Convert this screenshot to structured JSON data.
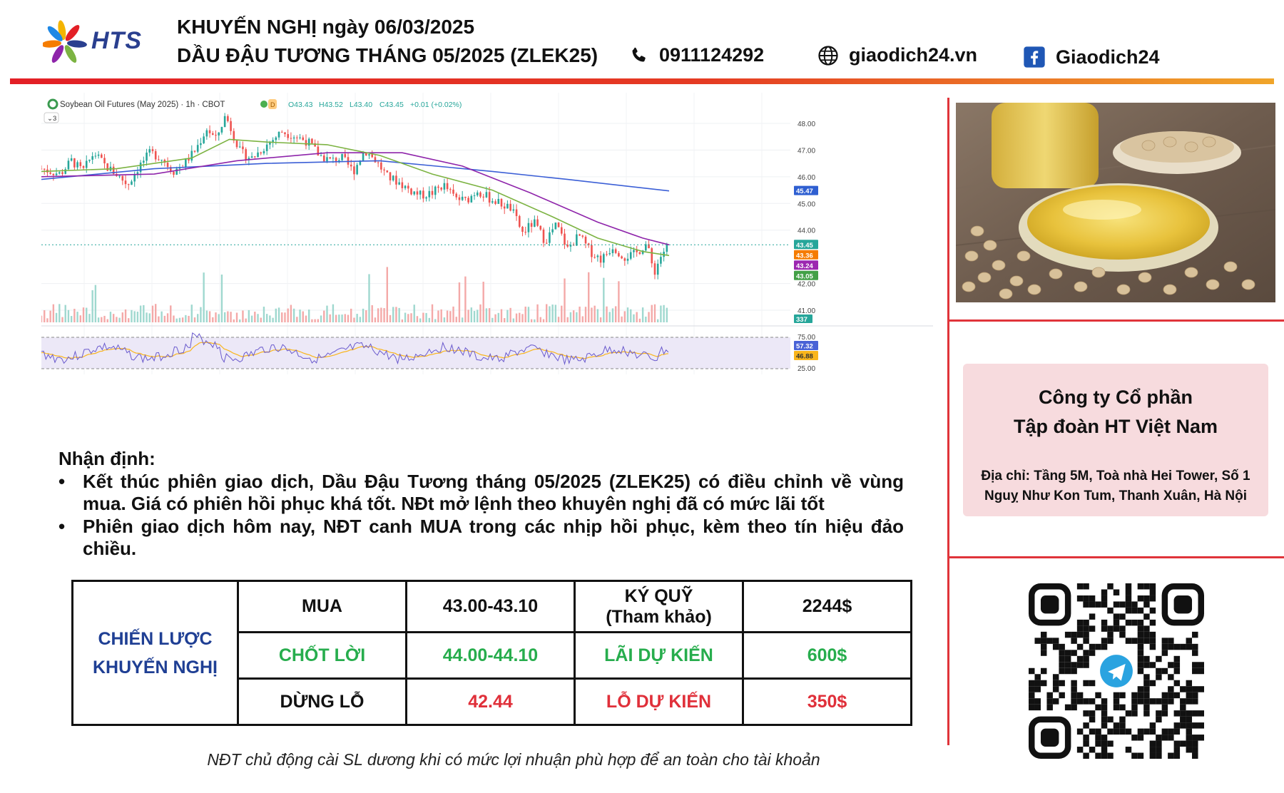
{
  "header": {
    "brand": "HTS",
    "title_line1": "KHUYẾN NGHỊ ngày 06/03/2025",
    "title_line2": "DẦU ĐẬU TƯƠNG THÁNG 05/2025 (ZLEK25)",
    "phone": "0911124292",
    "website": "giaodich24.vn",
    "facebook": "Giaodich24",
    "icons": [
      "phone-icon",
      "globe-icon",
      "facebook-icon"
    ]
  },
  "chart_data": {
    "type": "candlestick",
    "title": "Soybean Oil Futures (May 2025) · 1h · CBOT",
    "ohlc_readout": {
      "open": "O43.43",
      "high": "H43.52",
      "low": "L43.40",
      "close": "C43.45",
      "change": "+0.01 (+0.02%)"
    },
    "indicator_count": "3",
    "price_axis": {
      "ticks": [
        "48.00",
        "47.00",
        "46.00",
        "45.00",
        "44.00",
        "42.00",
        "41.00"
      ],
      "ylim": [
        40.6,
        48.4
      ]
    },
    "price_badges": [
      {
        "label": "45.47",
        "value": 45.47,
        "color": "#2f5fd1"
      },
      {
        "label": "43.45",
        "value": 43.45,
        "color": "#26a69a"
      },
      {
        "label": "43.36",
        "value": 43.36,
        "color": "#f57c00"
      },
      {
        "label": "43.24",
        "value": 43.24,
        "color": "#9c27b0"
      },
      {
        "label": "43.05",
        "value": 43.05,
        "color": "#43a047"
      }
    ],
    "volume_badge": "337",
    "close_anchors": [
      [
        0,
        46.3
      ],
      [
        25,
        46.1
      ],
      [
        40,
        46.6
      ],
      [
        55,
        46.2
      ],
      [
        70,
        46.9
      ],
      [
        85,
        46.4
      ],
      [
        100,
        46.1
      ],
      [
        115,
        45.7
      ],
      [
        130,
        46.4
      ],
      [
        145,
        46.9
      ],
      [
        160,
        46.7
      ],
      [
        175,
        46.2
      ],
      [
        190,
        46.5
      ],
      [
        205,
        47.0
      ],
      [
        220,
        47.8
      ],
      [
        232,
        47.4
      ],
      [
        245,
        48.3
      ],
      [
        255,
        47.6
      ],
      [
        265,
        46.9
      ],
      [
        280,
        46.7
      ],
      [
        300,
        47.2
      ],
      [
        320,
        47.7
      ],
      [
        340,
        47.5
      ],
      [
        355,
        47.3
      ],
      [
        370,
        46.8
      ],
      [
        385,
        46.6
      ],
      [
        400,
        46.7
      ],
      [
        415,
        46.2
      ],
      [
        430,
        47.0
      ],
      [
        445,
        46.6
      ],
      [
        460,
        46.0
      ],
      [
        475,
        45.8
      ],
      [
        490,
        45.5
      ],
      [
        505,
        45.3
      ],
      [
        520,
        45.4
      ],
      [
        535,
        45.7
      ],
      [
        550,
        45.2
      ],
      [
        565,
        45.1
      ],
      [
        580,
        45.5
      ],
      [
        595,
        45.2
      ],
      [
        610,
        45.0
      ],
      [
        625,
        44.8
      ],
      [
        640,
        43.9
      ],
      [
        655,
        44.3
      ],
      [
        670,
        43.6
      ],
      [
        685,
        44.2
      ],
      [
        700,
        43.3
      ],
      [
        715,
        43.8
      ],
      [
        730,
        43.2
      ],
      [
        745,
        42.9
      ],
      [
        760,
        43.4
      ],
      [
        775,
        43.0
      ],
      [
        790,
        43.1
      ],
      [
        805,
        43.5
      ],
      [
        815,
        42.4
      ],
      [
        825,
        43.1
      ],
      [
        835,
        43.45
      ]
    ],
    "ma_lines": [
      {
        "color": "#3b5fd6",
        "points": [
          [
            0,
            45.9
          ],
          [
            150,
            46.3
          ],
          [
            300,
            46.5
          ],
          [
            450,
            46.6
          ],
          [
            600,
            46.2
          ],
          [
            700,
            45.9
          ],
          [
            835,
            45.47
          ]
        ]
      },
      {
        "color": "#8e24aa",
        "points": [
          [
            0,
            46.0
          ],
          [
            150,
            46.1
          ],
          [
            260,
            46.6
          ],
          [
            380,
            46.9
          ],
          [
            480,
            46.9
          ],
          [
            560,
            46.4
          ],
          [
            650,
            45.4
          ],
          [
            740,
            44.3
          ],
          [
            800,
            43.7
          ],
          [
            835,
            43.45
          ]
        ]
      },
      {
        "color": "#7cb342",
        "points": [
          [
            0,
            46.2
          ],
          [
            100,
            46.3
          ],
          [
            200,
            46.7
          ],
          [
            250,
            47.4
          ],
          [
            300,
            47.3
          ],
          [
            380,
            47.2
          ],
          [
            450,
            46.8
          ],
          [
            520,
            46.1
          ],
          [
            600,
            45.5
          ],
          [
            680,
            44.5
          ],
          [
            740,
            43.7
          ],
          [
            800,
            43.2
          ],
          [
            835,
            43.05
          ]
        ]
      }
    ],
    "rsi_axis": {
      "ticks": [
        "75.00",
        "25.00"
      ]
    },
    "rsi_badges": [
      {
        "label": "57.32",
        "color": "#4a63d6"
      },
      {
        "label": "46.88",
        "color": "#f9b51c"
      }
    ]
  },
  "commentary": {
    "heading": "Nhận định:",
    "bullets": [
      "Kết thúc phiên giao dịch, Dầu Đậu Tương tháng 05/2025 (ZLEK25) có điều chỉnh về vùng mua. Giá có phiên hồi phục khá tốt. NĐt mở lệnh theo khuyên nghị đã có mức lãi tốt",
      "Phiên giao dịch hôm nay, NĐT canh MUA trong các nhịp hồi phục, kèm theo tín hiệu đảo chiều."
    ]
  },
  "strategy": {
    "label_line1": "CHIẾN LƯỢC",
    "label_line2": "KHUYẾN NGHỊ",
    "buy_label": "MUA",
    "buy_value": "43.00-43.10",
    "margin_label_line1": "KÝ QUỸ",
    "margin_label_line2": "(Tham khảo)",
    "margin_value": "2244$",
    "tp_label": "CHỐT LỜI",
    "tp_value": "44.00-44.10",
    "profit_label": "LÃI DỰ KIẾN",
    "profit_value": "600$",
    "sl_label": "DỪNG LỖ",
    "sl_value": "42.44",
    "loss_label": "LỖ DỰ KIẾN",
    "loss_value": "350$"
  },
  "footnote": "NĐT chủ động cài SL dương khi có mức lợi nhuận phù hợp để an toàn cho tài khoản",
  "company": {
    "name_line1": "Công ty Cổ phần",
    "name_line2": "Tập đoàn HT Việt Nam",
    "address_line1": "Địa chỉ: Tầng 5M, Toà nhà Hei Tower, Số 1",
    "address_line2": "Nguỵ Như Kon Tum, Thanh Xuân, Hà Nội"
  },
  "colors": {
    "accent_red": "#e31f26",
    "brand_blue": "#1f3f94",
    "profit_green": "#27ad4d",
    "loss_red": "#e0303a"
  }
}
